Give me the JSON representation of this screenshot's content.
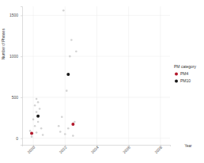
{
  "chart_data": {
    "type": "scatter",
    "x_label": "Year",
    "y_label": "Number of Phrases",
    "legend_title": "PM category",
    "xlim": [
      2019.3,
      2028.6
    ],
    "xticks": [
      2020,
      2022,
      2024,
      2026,
      2028
    ],
    "ylim": [
      -80,
      1610
    ],
    "yticks": [
      0,
      500,
      1000,
      1500
    ],
    "grid": true,
    "legend": "right",
    "series": [
      {
        "name": null,
        "color": "#d3d3d3",
        "x": [
          2020.2,
          2020.3,
          2020.1,
          2020.4,
          2020.2,
          2020.0,
          2020.3,
          2020.1,
          2020.5,
          2019.8,
          2020.2,
          2020.6,
          2019.9,
          2021.9,
          2022.4,
          2022.7,
          2022.3,
          2022.1,
          2021.8,
          2022.6,
          2022.2,
          2021.7,
          2022.0,
          2022.5,
          2021.6
        ],
        "values": [
          480,
          440,
          400,
          360,
          320,
          230,
          200,
          150,
          120,
          90,
          70,
          40,
          20,
          1560,
          1200,
          1060,
          1000,
          580,
          260,
          200,
          120,
          80,
          50,
          30,
          150
        ]
      },
      {
        "name": "PM4",
        "color": "#b2182b",
        "x": [
          2019.9,
          2022.5
        ],
        "values": [
          60,
          170
        ]
      },
      {
        "name": "PM10",
        "color": "#1a1a1a",
        "x": [
          2020.3,
          2022.2
        ],
        "values": [
          270,
          780
        ]
      }
    ]
  }
}
